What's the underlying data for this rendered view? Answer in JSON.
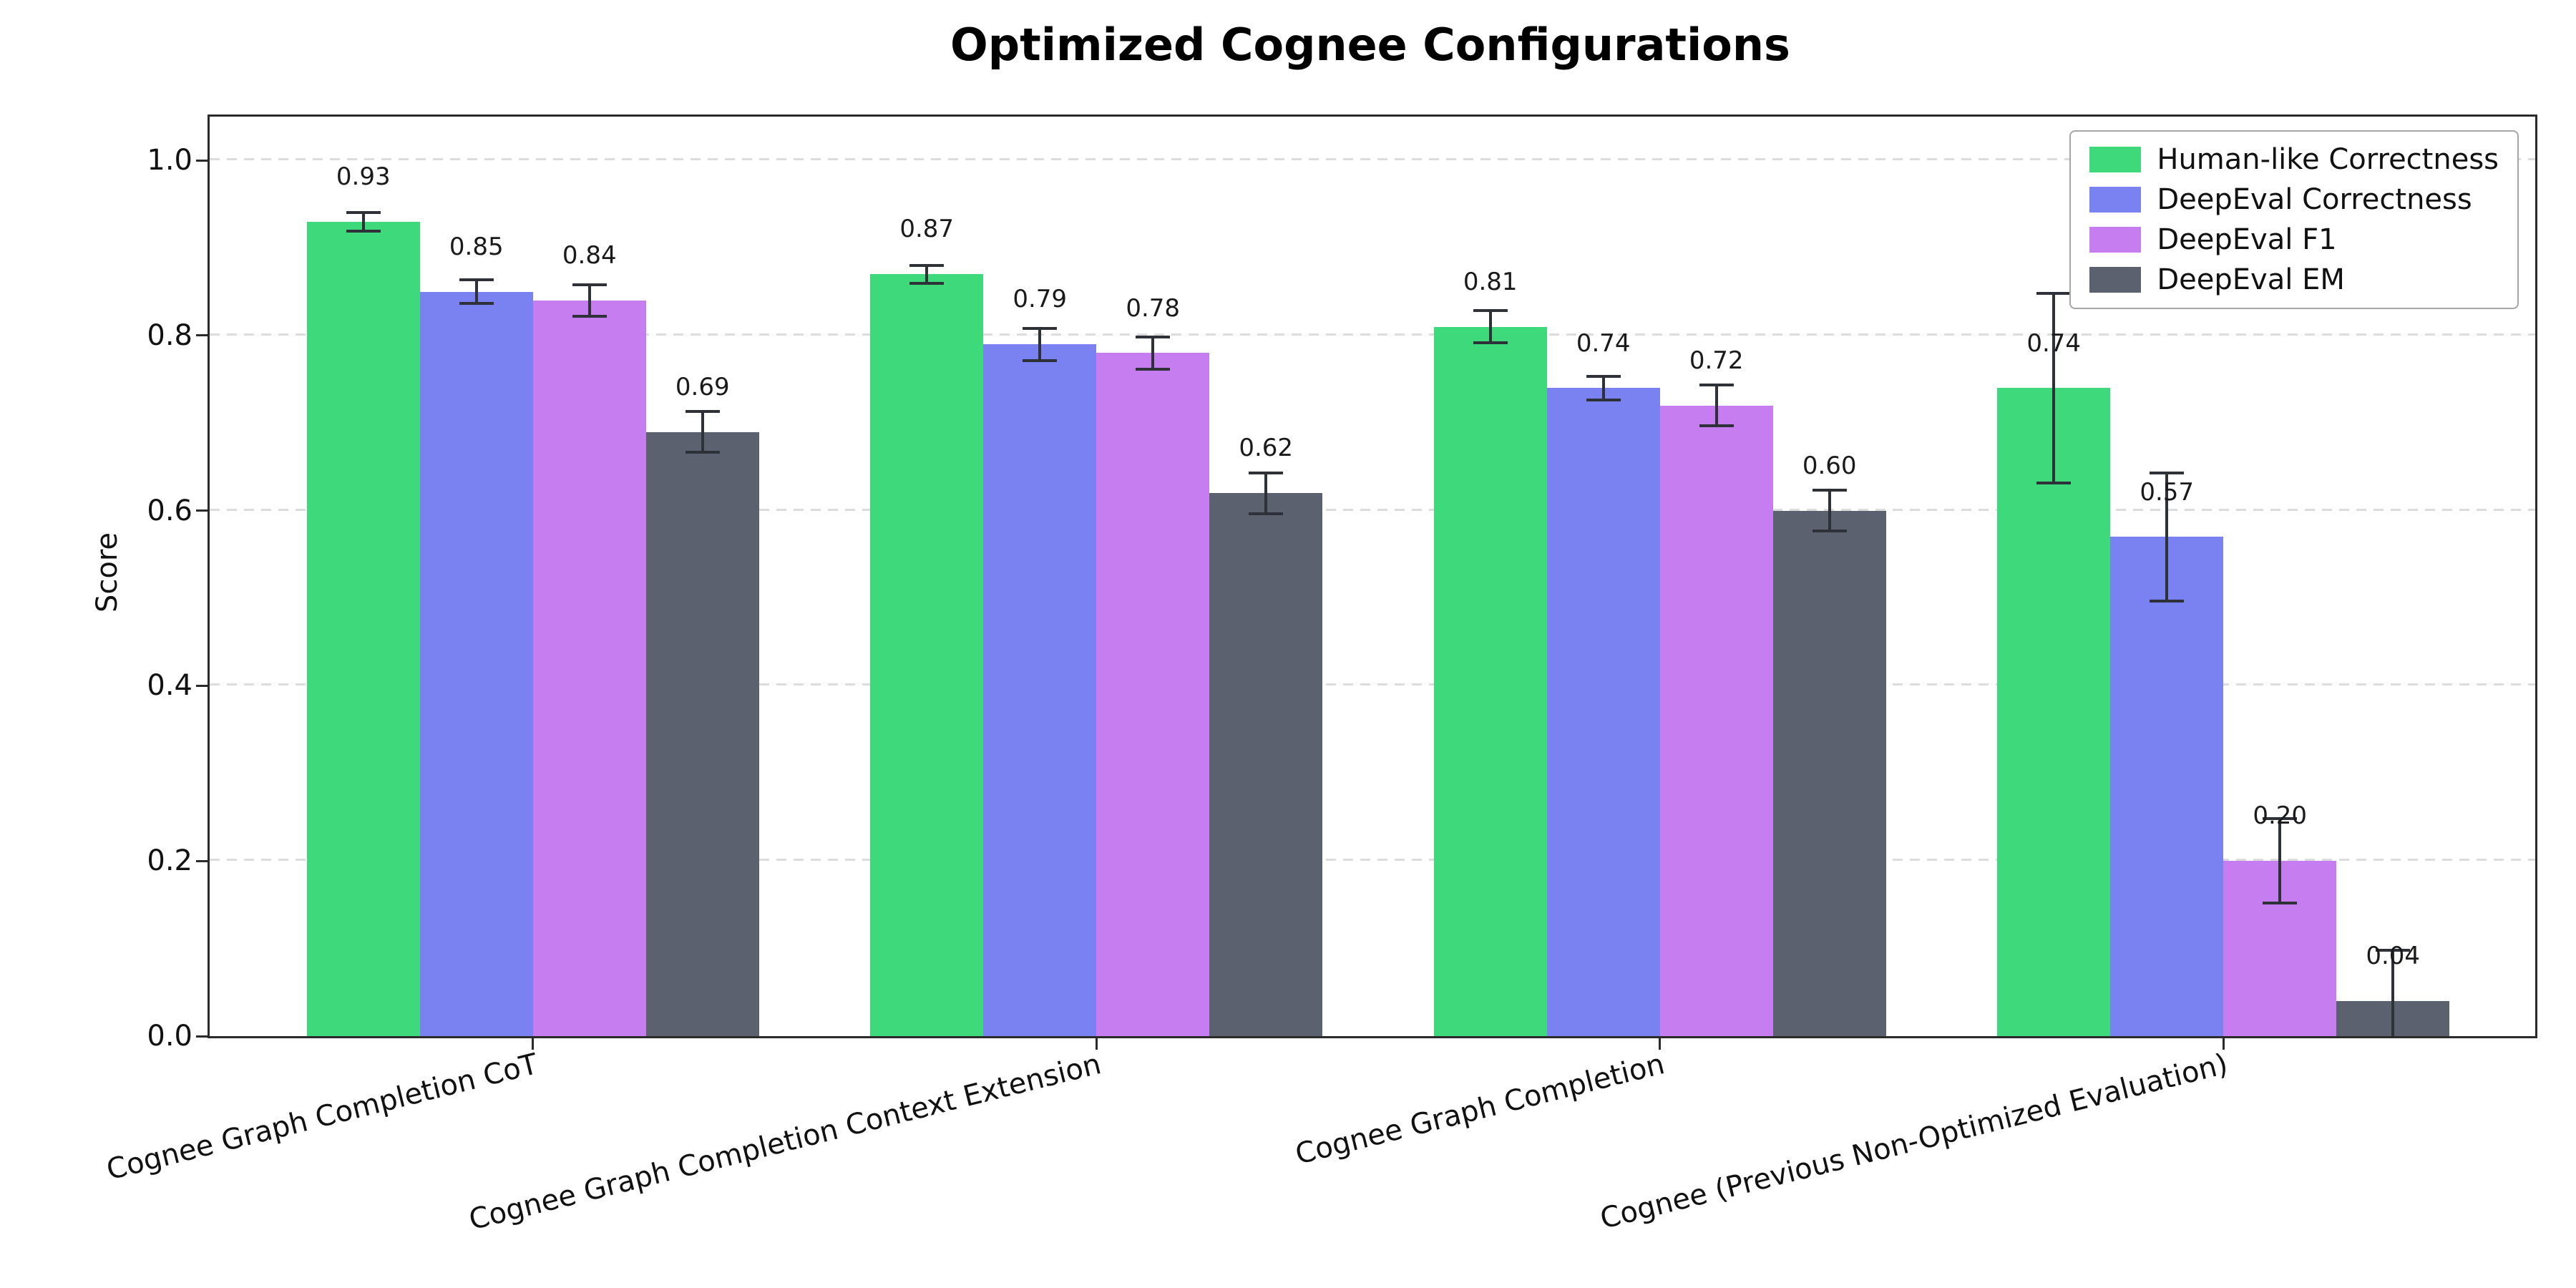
{
  "chart_data": {
    "type": "bar",
    "title": "Optimized Cognee Configurations",
    "xlabel": "",
    "ylabel": "Score",
    "ylim": [
      0,
      1.05
    ],
    "yticks": [
      0.0,
      0.2,
      0.4,
      0.6,
      0.8,
      1.0
    ],
    "grid": "horizontal dashed",
    "legend_position": "upper right",
    "error_bars": true,
    "bar_labels": true,
    "categories": [
      "Cognee Graph Completion CoT",
      "Cognee Graph Completion Context Extension",
      "Cognee Graph Completion",
      "Cognee (Previous Non-Optimized Evaluation)"
    ],
    "series": [
      {
        "name": "Human-like Correctness",
        "color": "#3ed97b",
        "values": [
          0.93,
          0.87,
          0.81,
          0.74
        ],
        "errors": [
          0.012,
          0.012,
          0.02,
          0.11
        ]
      },
      {
        "name": "DeepEval Correctness",
        "color": "#7a81f0",
        "values": [
          0.85,
          0.79,
          0.74,
          0.57
        ],
        "errors": [
          0.015,
          0.02,
          0.015,
          0.075
        ]
      },
      {
        "name": "DeepEval F1",
        "color": "#c57df0",
        "values": [
          0.84,
          0.78,
          0.72,
          0.2
        ],
        "errors": [
          0.02,
          0.02,
          0.025,
          0.05
        ]
      },
      {
        "name": "DeepEval EM",
        "color": "#5b616e",
        "values": [
          0.69,
          0.62,
          0.6,
          0.04
        ],
        "errors": [
          0.025,
          0.025,
          0.025,
          0.06
        ]
      }
    ]
  }
}
